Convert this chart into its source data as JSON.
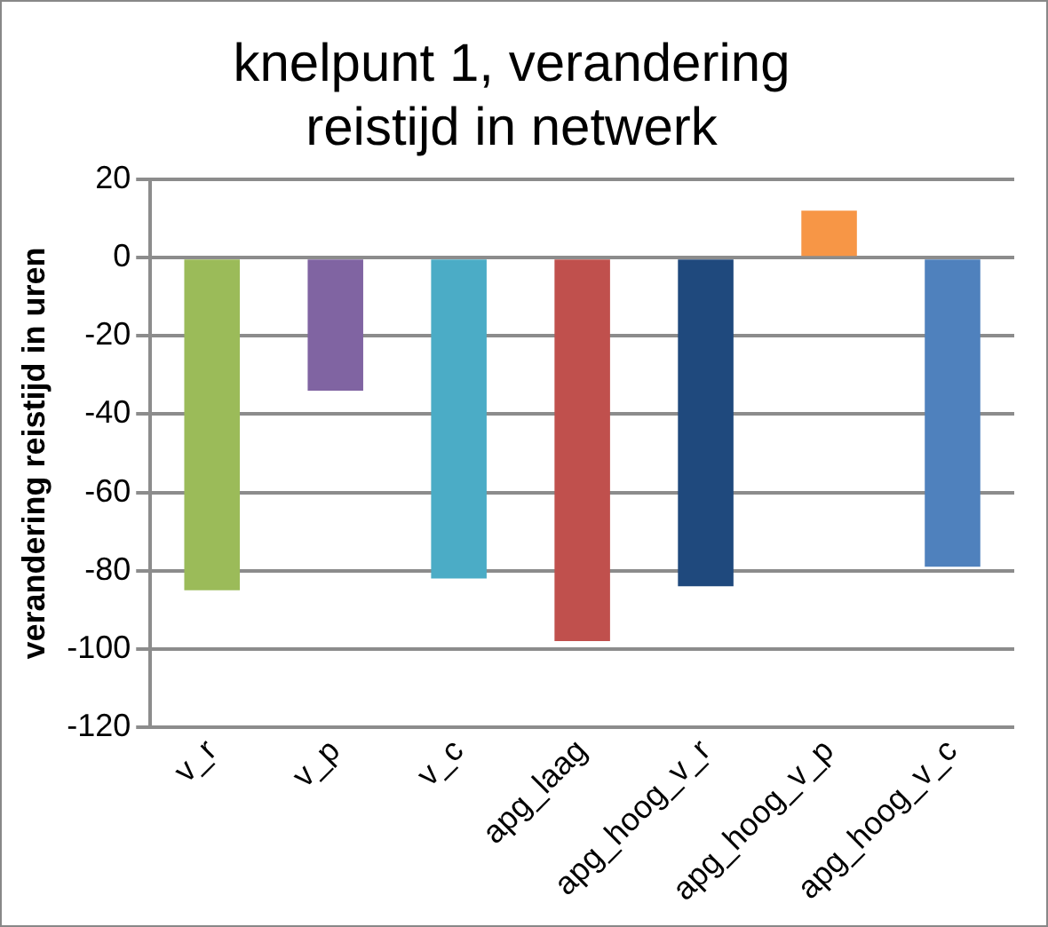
{
  "chart_data": {
    "type": "bar",
    "title": [
      "knelpunt 1, verandering",
      "reistijd in netwerk"
    ],
    "ylabel": "verandering reistijd in uren",
    "categories": [
      "v_r",
      "v_p",
      "v_c",
      "apg_laag",
      "apg_hoog_v_r",
      "apg_hoog_v_p",
      "apg_hoog_v_c"
    ],
    "values": [
      -85,
      -34,
      -82,
      -98,
      -84,
      12,
      -79
    ],
    "colors": [
      "#9bbb59",
      "#8064a2",
      "#4bacc6",
      "#c0504d",
      "#1f497d",
      "#f79646",
      "#4f81bd"
    ],
    "ylim": [
      -120,
      20
    ],
    "yticks": [
      -120,
      -100,
      -80,
      -60,
      -40,
      -20,
      0,
      20
    ],
    "grid": "y",
    "legend": false
  }
}
